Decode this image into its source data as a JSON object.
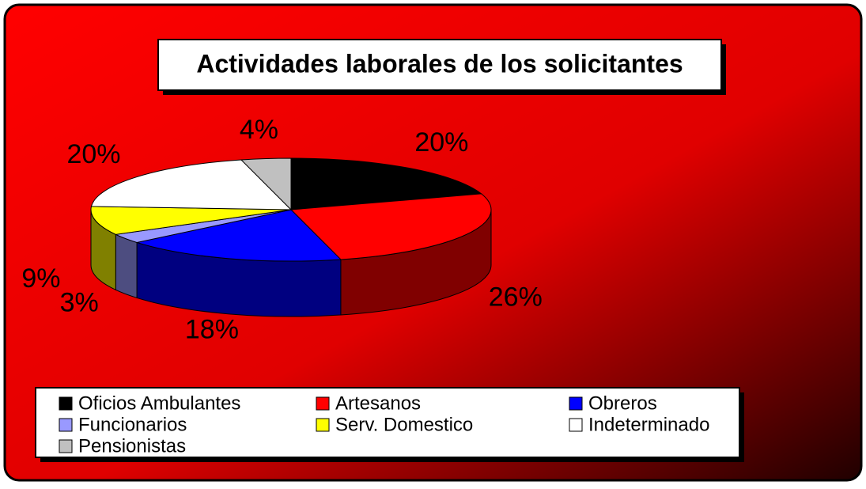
{
  "chart_data": {
    "type": "pie",
    "title": "Actividades laborales de los solicitantes",
    "categories": [
      "Oficios Ambulantes",
      "Artesanos",
      "Obreros",
      "Funcionarios",
      "Serv. Domestico",
      "Indeterminado",
      "Pensionistas"
    ],
    "values": [
      20,
      26,
      18,
      3,
      9,
      20,
      4
    ],
    "value_labels": [
      "20%",
      "26%",
      "18%",
      "3%",
      "9%",
      "20%",
      "4%"
    ],
    "colors": [
      "#000000",
      "#ff0000",
      "#0000ff",
      "#9999ff",
      "#ffff00",
      "#ffffff",
      "#c0c0c0"
    ],
    "legend": "bottom"
  }
}
